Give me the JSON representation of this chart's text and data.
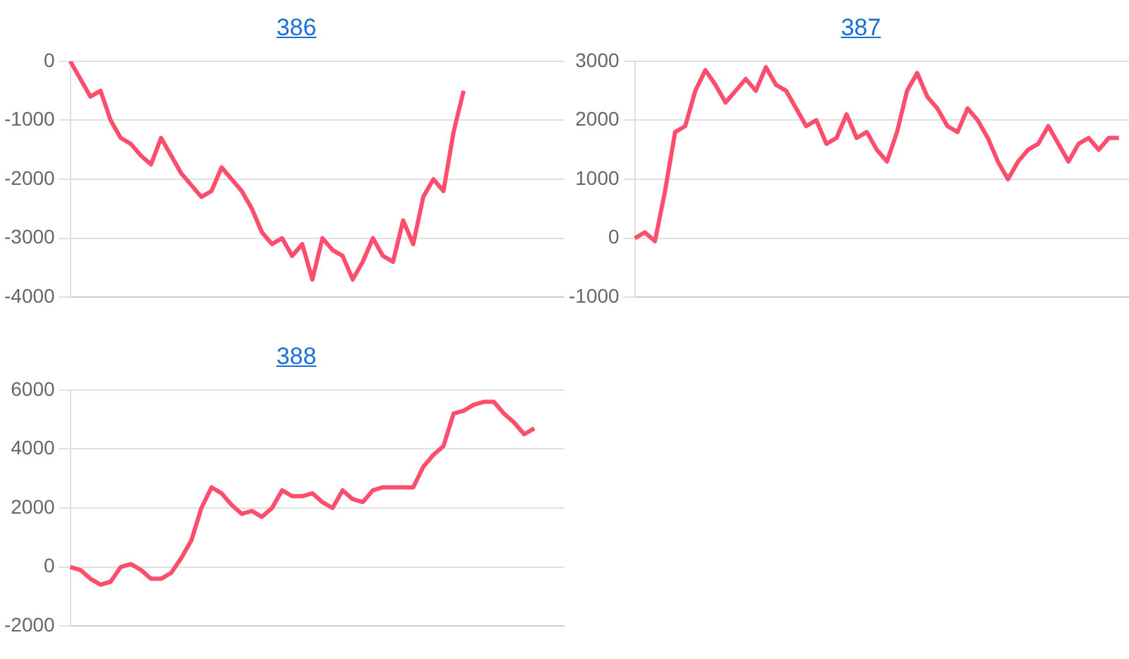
{
  "chart_data": [
    {
      "type": "line",
      "title": "386",
      "categories": [
        null,
        null,
        null,
        null,
        null,
        null,
        null,
        null,
        null,
        null,
        null,
        null,
        null,
        null,
        null,
        null,
        null,
        null,
        null,
        null,
        null,
        null,
        null,
        null,
        null,
        null,
        null,
        null,
        null,
        null,
        null,
        null,
        null,
        null,
        null,
        null,
        null,
        null,
        null,
        null,
        null,
        null,
        null,
        null,
        null,
        null,
        null,
        null,
        null,
        null
      ],
      "series": [
        {
          "color": "#ff4d6d",
          "values": [
            0,
            -300,
            -600,
            -500,
            -1000,
            -1300,
            -1400,
            -1600,
            -1750,
            -1300,
            -1600,
            -1900,
            -2100,
            -2300,
            -2200,
            -1800,
            -2000,
            -2200,
            -2500,
            -2900,
            -3100,
            -3000,
            -3300,
            -3100,
            -3700,
            -3000,
            -3200,
            -3300,
            -3700,
            -3400,
            -3000,
            -3300,
            -3400,
            -2700,
            -3100,
            -2300,
            -2000,
            -2200,
            -1200,
            -500,
            null,
            null,
            null,
            null,
            null,
            null,
            null,
            null,
            null,
            null
          ]
        }
      ],
      "ylim": [
        -4000,
        0
      ],
      "yticks": [
        -4000,
        -3000,
        -2000,
        -1000,
        0
      ],
      "grid": "y",
      "tick_labels": "y",
      "marker": "none",
      "line_style": "solid"
    },
    {
      "type": "line",
      "title": "387",
      "categories": [
        null,
        null,
        null,
        null,
        null,
        null,
        null,
        null,
        null,
        null,
        null,
        null,
        null,
        null,
        null,
        null,
        null,
        null,
        null,
        null,
        null,
        null,
        null,
        null,
        null,
        null,
        null,
        null,
        null,
        null,
        null,
        null,
        null,
        null,
        null,
        null,
        null,
        null,
        null,
        null,
        null,
        null,
        null,
        null,
        null,
        null,
        null,
        null,
        null,
        null
      ],
      "series": [
        {
          "color": "#ff4d6d",
          "values": [
            0,
            100,
            -50,
            800,
            1800,
            1900,
            2500,
            2850,
            2600,
            2300,
            2500,
            2700,
            2500,
            2900,
            2600,
            2500,
            2200,
            1900,
            2000,
            1600,
            1700,
            2100,
            1700,
            1800,
            1500,
            1300,
            1800,
            2500,
            2800,
            2400,
            2200,
            1900,
            1800,
            2200,
            2000,
            1700,
            1300,
            1000,
            1300,
            1500,
            1600,
            1900,
            1600,
            1300,
            1600,
            1700,
            1500,
            1700,
            1700,
            null
          ]
        }
      ],
      "ylim": [
        -1000,
        3000
      ],
      "yticks": [
        -1000,
        0,
        1000,
        2000,
        3000
      ],
      "grid": "y",
      "tick_labels": "y",
      "marker": "none",
      "line_style": "solid"
    },
    {
      "type": "line",
      "title": "388",
      "categories": [
        null,
        null,
        null,
        null,
        null,
        null,
        null,
        null,
        null,
        null,
        null,
        null,
        null,
        null,
        null,
        null,
        null,
        null,
        null,
        null,
        null,
        null,
        null,
        null,
        null,
        null,
        null,
        null,
        null,
        null,
        null,
        null,
        null,
        null,
        null,
        null,
        null,
        null,
        null,
        null,
        null,
        null,
        null,
        null,
        null,
        null,
        null,
        null,
        null,
        null
      ],
      "series": [
        {
          "color": "#ff4d6d",
          "values": [
            0,
            -100,
            -400,
            -600,
            -500,
            0,
            100,
            -100,
            -400,
            -400,
            -200,
            300,
            900,
            2000,
            2700,
            2500,
            2100,
            1800,
            1900,
            1700,
            2000,
            2600,
            2400,
            2400,
            2500,
            2200,
            2000,
            2600,
            2300,
            2200,
            2600,
            2700,
            2700,
            2700,
            2700,
            3400,
            3800,
            4100,
            5200,
            5300,
            5500,
            5600,
            5600,
            5200,
            4900,
            4500,
            4700,
            null,
            null,
            null
          ]
        }
      ],
      "ylim": [
        -2000,
        6000
      ],
      "yticks": [
        -2000,
        0,
        2000,
        4000,
        6000
      ],
      "grid": "y",
      "tick_labels": "y",
      "marker": "none",
      "line_style": "solid"
    }
  ]
}
